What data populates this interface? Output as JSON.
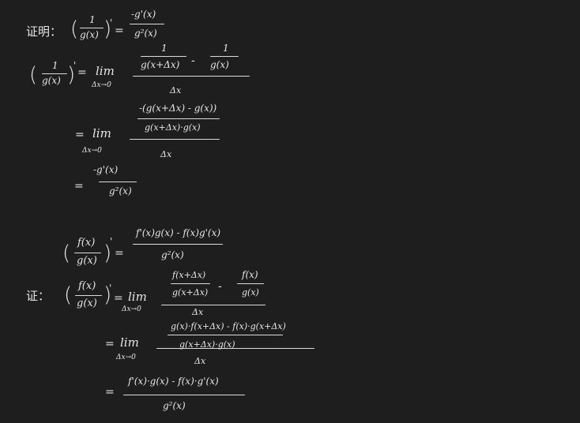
{
  "line1": {
    "label": "证明：",
    "lhs_num": "1",
    "lhs_den": "g(x)",
    "prime": "'",
    "eq": "=",
    "rhs_num": "-g'(x)",
    "rhs_den": "g²(x)"
  },
  "line2": {
    "lhs_num": "1",
    "lhs_den": "g(x)",
    "prime": "'",
    "eq": "=",
    "lim": "lim",
    "lim_sub": "Δx→0",
    "inner_num_a": "1",
    "inner_den_a": "g(x+Δx)",
    "minus": "-",
    "inner_num_b": "1",
    "inner_den_b": "g(x)",
    "den": "Δx"
  },
  "line3": {
    "eq": "=",
    "lim": "lim",
    "lim_sub": "Δx→0",
    "inner_num": "-(g(x+Δx) - g(x))",
    "inner_den": "g(x+Δx)·g(x)",
    "den": "Δx"
  },
  "line4": {
    "eq": "=",
    "num": "-g'(x)",
    "den": "g²(x)"
  },
  "line5": {
    "lhs_num": "f(x)",
    "lhs_den": "g(x)",
    "prime": "'",
    "eq": "=",
    "num": "f'(x)g(x) - f(x)g'(x)",
    "den": "g²(x)"
  },
  "line6": {
    "label": "证：",
    "lhs_num": "f(x)",
    "lhs_den": "g(x)",
    "prime": "'",
    "eq": "=",
    "lim": "lim",
    "lim_sub": "Δx→0",
    "inner_num_a": "f(x+Δx)",
    "inner_den_a": "g(x+Δx)",
    "minus": "-",
    "inner_num_b": "f(x)",
    "inner_den_b": "g(x)",
    "den": "Δx"
  },
  "line7": {
    "eq": "=",
    "lim": "lim",
    "lim_sub": "Δx→0",
    "inner_num": "g(x)·f(x+Δx) - f(x)·g(x+Δx)",
    "inner_den": "g(x+Δx)·g(x)",
    "den": "Δx"
  },
  "line8": {
    "eq": "=",
    "num": "f'(x)·g(x) - f(x)·g'(x)",
    "den": "g²(x)"
  }
}
